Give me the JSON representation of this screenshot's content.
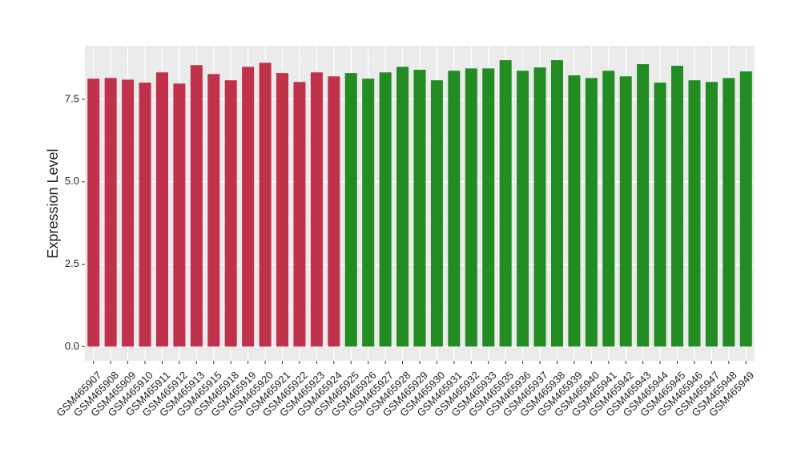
{
  "chart_data": {
    "type": "bar",
    "y_label": "Expression Level",
    "categories": [
      "GSM465907",
      "GSM465908",
      "GSM465909",
      "GSM465910",
      "GSM465911",
      "GSM465912",
      "GSM465913",
      "GSM465915",
      "GSM465918",
      "GSM465919",
      "GSM465920",
      "GSM465921",
      "GSM465922",
      "GSM465923",
      "GSM465924",
      "GSM465925",
      "GSM465926",
      "GSM465927",
      "GSM465928",
      "GSM465929",
      "GSM465930",
      "GSM465931",
      "GSM465932",
      "GSM465933",
      "GSM465935",
      "GSM465936",
      "GSM465937",
      "GSM465938",
      "GSM465939",
      "GSM465940",
      "GSM465941",
      "GSM465942",
      "GSM465943",
      "GSM465944",
      "GSM465945",
      "GSM465946",
      "GSM465947",
      "GSM465948",
      "GSM465949"
    ],
    "values": [
      8.13,
      8.15,
      8.1,
      8.01,
      8.32,
      7.98,
      8.54,
      8.27,
      8.08,
      8.49,
      8.61,
      8.3,
      8.03,
      8.32,
      8.2,
      8.3,
      8.13,
      8.32,
      8.49,
      8.4,
      8.08,
      8.37,
      8.44,
      8.44,
      8.69,
      8.37,
      8.47,
      8.69,
      8.23,
      8.15,
      8.37,
      8.2,
      8.57,
      8.01,
      8.52,
      8.08,
      8.03,
      8.15,
      8.35
    ],
    "colors": [
      "#c0314a",
      "#c0314a",
      "#c0314a",
      "#c0314a",
      "#c0314a",
      "#c0314a",
      "#c0314a",
      "#c0314a",
      "#c0314a",
      "#c0314a",
      "#c0314a",
      "#c0314a",
      "#c0314a",
      "#c0314a",
      "#c0314a",
      "#228b22",
      "#228b22",
      "#228b22",
      "#228b22",
      "#228b22",
      "#228b22",
      "#228b22",
      "#228b22",
      "#228b22",
      "#228b22",
      "#228b22",
      "#228b22",
      "#228b22",
      "#228b22",
      "#228b22",
      "#228b22",
      "#228b22",
      "#228b22",
      "#228b22",
      "#228b22",
      "#228b22",
      "#228b22",
      "#228b22",
      "#228b22"
    ],
    "ylim": [
      -0.43,
      9.13
    ],
    "yticks": [
      {
        "value": 0,
        "label": "0.0"
      },
      2.5,
      {
        "value": 5,
        "label": "5.0"
      },
      7.5
    ],
    "y_minor_ticks": [
      1.25,
      3.75,
      6.25,
      8.75
    ],
    "grid": true
  }
}
